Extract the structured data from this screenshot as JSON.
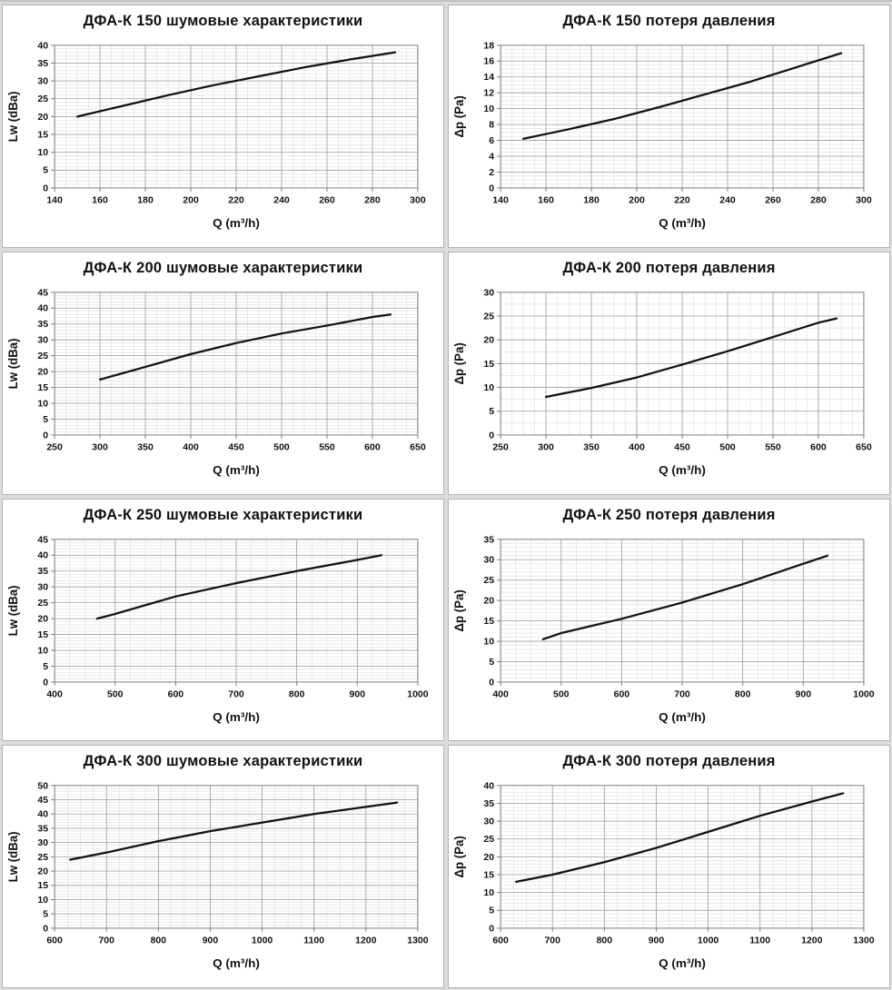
{
  "page": {
    "background_color": "#dcdcdc",
    "panel_color": "#ffffff",
    "panel_border_color": "#b3b3b3"
  },
  "style": {
    "line_color": "#111111",
    "grid_minor_color": "#dedede",
    "grid_major_color": "#9f9f9f",
    "axis_color": "#7a7a7a",
    "text_color": "#111111"
  },
  "chart_data": [
    {
      "type": "line",
      "title": "ДФА-К 150 шумовые характеристики",
      "xlabel": "Q (m³/h)",
      "ylabel": "Lw (dBa)",
      "xlim": [
        140,
        300
      ],
      "xstep": 20,
      "ylim": [
        0,
        40
      ],
      "ystep": 5,
      "x_minor_div": 4,
      "y_minor_div": 5,
      "grid": true,
      "legend": "none",
      "series": [
        {
          "name": "Lw",
          "x": [
            150,
            170,
            190,
            210,
            230,
            250,
            270,
            290
          ],
          "y": [
            20,
            23,
            26,
            28.8,
            31.3,
            33.8,
            36,
            38
          ]
        }
      ]
    },
    {
      "type": "line",
      "title": "ДФА-К 150 потеря давления",
      "xlabel": "Q (m³/h)",
      "ylabel": "Δp (Pa)",
      "xlim": [
        140,
        300
      ],
      "xstep": 20,
      "ylim": [
        0,
        18
      ],
      "ystep": 2,
      "x_minor_div": 4,
      "y_minor_div": 4,
      "grid": true,
      "legend": "none",
      "series": [
        {
          "name": "Δp",
          "x": [
            150,
            170,
            190,
            210,
            230,
            250,
            270,
            290
          ],
          "y": [
            6.2,
            7.4,
            8.7,
            10.2,
            11.8,
            13.4,
            15.2,
            17
          ]
        }
      ]
    },
    {
      "type": "line",
      "title": "ДФА-К 200 шумовые характеристики",
      "xlabel": "Q (m³/h)",
      "ylabel": "Lw (dBa)",
      "xlim": [
        250,
        650
      ],
      "xstep": 50,
      "ylim": [
        0,
        45
      ],
      "ystep": 5,
      "x_minor_div": 4,
      "y_minor_div": 5,
      "grid": true,
      "legend": "none",
      "series": [
        {
          "name": "Lw",
          "x": [
            300,
            350,
            400,
            450,
            500,
            550,
            600,
            620
          ],
          "y": [
            17.5,
            21.5,
            25.5,
            29,
            32,
            34.5,
            37.2,
            38
          ]
        }
      ]
    },
    {
      "type": "line",
      "title": "ДФА-К 200 потеря давления",
      "xlabel": "Q (m³/h)",
      "ylabel": "Δp (Pa)",
      "xlim": [
        250,
        650
      ],
      "xstep": 50,
      "ylim": [
        0,
        30
      ],
      "ystep": 5,
      "x_minor_div": 4,
      "y_minor_div": 2,
      "grid": true,
      "legend": "none",
      "series": [
        {
          "name": "Δp",
          "x": [
            300,
            350,
            400,
            450,
            500,
            550,
            600,
            620
          ],
          "y": [
            8,
            9.9,
            12.1,
            14.8,
            17.6,
            20.6,
            23.6,
            24.5
          ]
        }
      ]
    },
    {
      "type": "line",
      "title": "ДФА-К 250 шумовые характеристики",
      "xlabel": "Q (m³/h)",
      "ylabel": "Lw (dBa)",
      "xlim": [
        400,
        1000
      ],
      "xstep": 100,
      "ylim": [
        0,
        45
      ],
      "ystep": 5,
      "x_minor_div": 4,
      "y_minor_div": 5,
      "grid": true,
      "legend": "none",
      "series": [
        {
          "name": "Lw",
          "x": [
            470,
            500,
            600,
            700,
            800,
            900,
            940
          ],
          "y": [
            20,
            21.5,
            27,
            31.2,
            35,
            38.5,
            40
          ]
        }
      ]
    },
    {
      "type": "line",
      "title": "ДФА-К 250 потеря давления",
      "xlabel": "Q (m³/h)",
      "ylabel": "Δp (Pa)",
      "xlim": [
        400,
        1000
      ],
      "xstep": 100,
      "ylim": [
        0,
        35
      ],
      "ystep": 5,
      "x_minor_div": 4,
      "y_minor_div": 5,
      "grid": true,
      "legend": "none",
      "series": [
        {
          "name": "Δp",
          "x": [
            470,
            500,
            600,
            700,
            800,
            900,
            940
          ],
          "y": [
            10.5,
            12,
            15.5,
            19.5,
            24,
            29,
            31
          ]
        }
      ]
    },
    {
      "type": "line",
      "title": "ДФА-К 300 шумовые характеристики",
      "xlabel": "Q (m³/h)",
      "ylabel": "Lw (dBa)",
      "xlim": [
        600,
        1300
      ],
      "xstep": 100,
      "ylim": [
        0,
        50
      ],
      "ystep": 5,
      "x_minor_div": 4,
      "y_minor_div": 5,
      "grid": true,
      "legend": "none",
      "series": [
        {
          "name": "Lw",
          "x": [
            630,
            700,
            800,
            900,
            1000,
            1100,
            1200,
            1260
          ],
          "y": [
            24,
            26.5,
            30.5,
            34,
            37,
            40,
            42.5,
            44
          ]
        }
      ]
    },
    {
      "type": "line",
      "title": "ДФА-К 300 потеря давления",
      "xlabel": "Q (m³/h)",
      "ylabel": "Δp (Pa)",
      "xlim": [
        600,
        1300
      ],
      "xstep": 100,
      "ylim": [
        0,
        40
      ],
      "ystep": 5,
      "x_minor_div": 4,
      "y_minor_div": 5,
      "grid": true,
      "legend": "none",
      "series": [
        {
          "name": "Δp",
          "x": [
            630,
            700,
            800,
            900,
            1000,
            1100,
            1200,
            1260
          ],
          "y": [
            13,
            15,
            18.5,
            22.5,
            27,
            31.5,
            35.5,
            37.8
          ]
        }
      ]
    }
  ]
}
